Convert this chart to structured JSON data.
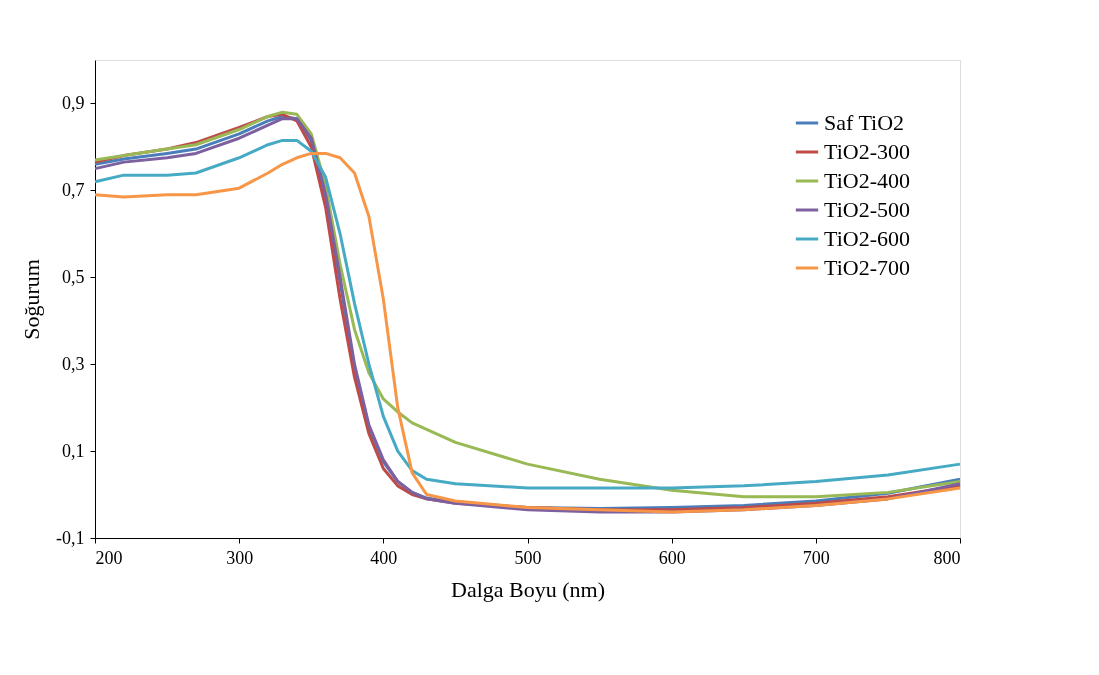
{
  "chart_data": {
    "type": "line",
    "xlabel": "Dalga Boyu (nm)",
    "ylabel": "Soğurum",
    "x": [
      200,
      220,
      250,
      270,
      300,
      320,
      330,
      340,
      350,
      360,
      370,
      380,
      390,
      400,
      410,
      420,
      430,
      450,
      500,
      550,
      600,
      650,
      700,
      750,
      800
    ],
    "series": [
      {
        "name": "Saf TiO2",
        "color": "#4a7ebb",
        "values": [
          0.76,
          0.772,
          0.785,
          0.795,
          0.83,
          0.86,
          0.87,
          0.865,
          0.815,
          0.68,
          0.49,
          0.29,
          0.155,
          0.075,
          0.03,
          0.005,
          -0.008,
          -0.018,
          -0.03,
          -0.032,
          -0.03,
          -0.025,
          -0.015,
          0.003,
          0.035
        ]
      },
      {
        "name": "TiO2-300",
        "color": "#be4b48",
        "values": [
          0.765,
          0.78,
          0.795,
          0.81,
          0.845,
          0.87,
          0.875,
          0.86,
          0.8,
          0.66,
          0.45,
          0.27,
          0.14,
          0.06,
          0.02,
          0.0,
          -0.01,
          -0.02,
          -0.03,
          -0.035,
          -0.035,
          -0.03,
          -0.02,
          -0.005,
          0.02
        ]
      },
      {
        "name": "TiO2-400",
        "color": "#98b954",
        "values": [
          0.77,
          0.78,
          0.795,
          0.805,
          0.84,
          0.87,
          0.88,
          0.875,
          0.83,
          0.71,
          0.53,
          0.38,
          0.28,
          0.22,
          0.19,
          0.165,
          0.15,
          0.12,
          0.07,
          0.035,
          0.01,
          -0.005,
          -0.005,
          0.005,
          0.03
        ]
      },
      {
        "name": "TiO2-500",
        "color": "#7d60a0",
        "values": [
          0.75,
          0.765,
          0.775,
          0.785,
          0.82,
          0.85,
          0.865,
          0.865,
          0.82,
          0.69,
          0.5,
          0.3,
          0.16,
          0.08,
          0.03,
          0.005,
          -0.01,
          -0.02,
          -0.035,
          -0.04,
          -0.04,
          -0.035,
          -0.025,
          -0.01,
          0.025
        ]
      },
      {
        "name": "TiO2-600",
        "color": "#46aac5",
        "values": [
          0.72,
          0.735,
          0.735,
          0.74,
          0.775,
          0.805,
          0.815,
          0.815,
          0.79,
          0.73,
          0.6,
          0.44,
          0.3,
          0.18,
          0.1,
          0.055,
          0.035,
          0.025,
          0.015,
          0.015,
          0.015,
          0.02,
          0.03,
          0.045,
          0.07
        ]
      },
      {
        "name": "TiO2-700",
        "color": "#f79646",
        "values": [
          0.69,
          0.685,
          0.69,
          0.69,
          0.705,
          0.74,
          0.76,
          0.775,
          0.785,
          0.785,
          0.775,
          0.74,
          0.64,
          0.45,
          0.2,
          0.05,
          0.0,
          -0.015,
          -0.03,
          -0.035,
          -0.04,
          -0.035,
          -0.025,
          -0.01,
          0.015
        ]
      }
    ],
    "xlim": [
      200,
      800
    ],
    "xticks": [
      200,
      300,
      400,
      500,
      600,
      700,
      800
    ],
    "ylim": [
      -0.1,
      1.0
    ],
    "yticks": [
      {
        "value": -0.1,
        "label": "-0,1"
      },
      {
        "value": 0.1,
        "label": "0,1"
      },
      {
        "value": 0.3,
        "label": "0,3"
      },
      {
        "value": 0.5,
        "label": "0,5"
      },
      {
        "value": 0.7,
        "label": "0,7"
      },
      {
        "value": 0.9,
        "label": "0,9"
      }
    ],
    "grid": false,
    "legend": "top right",
    "marker": "none",
    "line_style": "solid"
  }
}
